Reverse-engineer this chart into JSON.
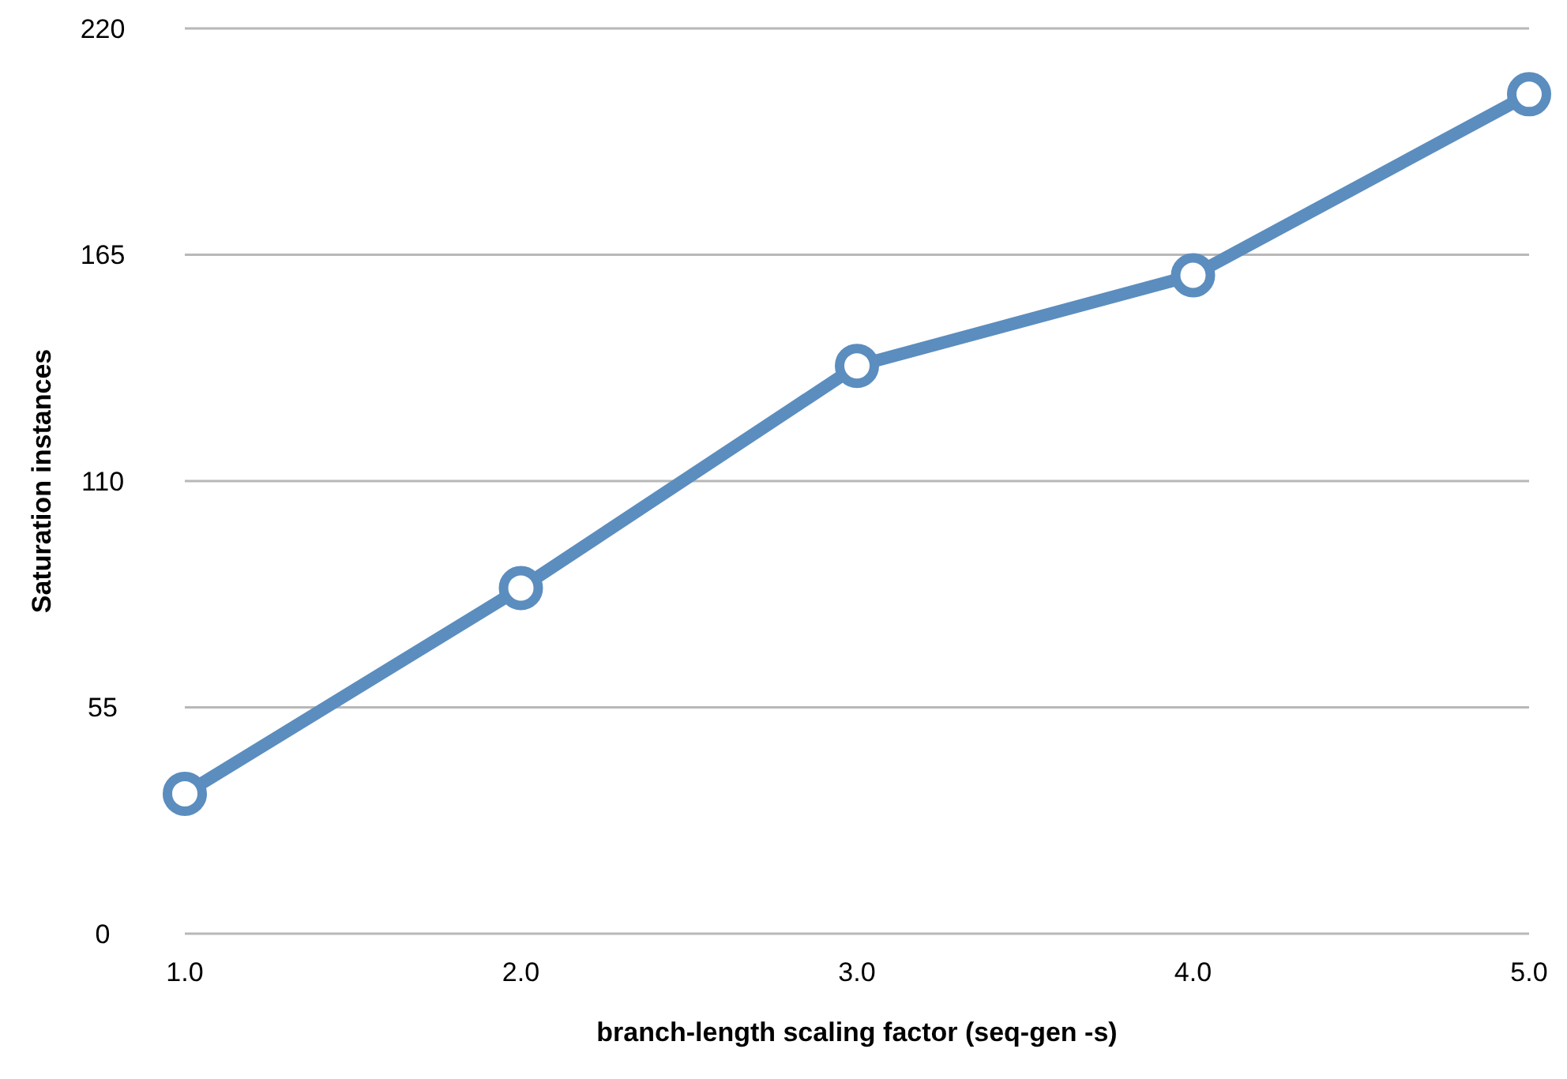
{
  "chart_data": {
    "type": "line",
    "xlabel": "branch-length scaling factor (seq-gen -s)",
    "ylabel": "Saturation instances",
    "x": [
      1,
      2,
      3,
      4,
      5
    ],
    "series": [
      {
        "color": "#5b8dbf",
        "values": [
          34,
          84,
          138,
          160,
          204
        ]
      }
    ],
    "xlim": [
      1,
      5
    ],
    "xticks": [
      {
        "value": 1,
        "label": "1.0"
      },
      {
        "value": 2,
        "label": "2.0"
      },
      {
        "value": 3,
        "label": "3.0"
      },
      {
        "value": 4,
        "label": "4.0"
      },
      {
        "value": 5,
        "label": "5.0"
      }
    ],
    "ylim": [
      0,
      220
    ],
    "yticks": [
      0,
      55,
      110,
      165,
      220
    ],
    "grid": "y",
    "marker": "circle",
    "line_style": "solid"
  }
}
